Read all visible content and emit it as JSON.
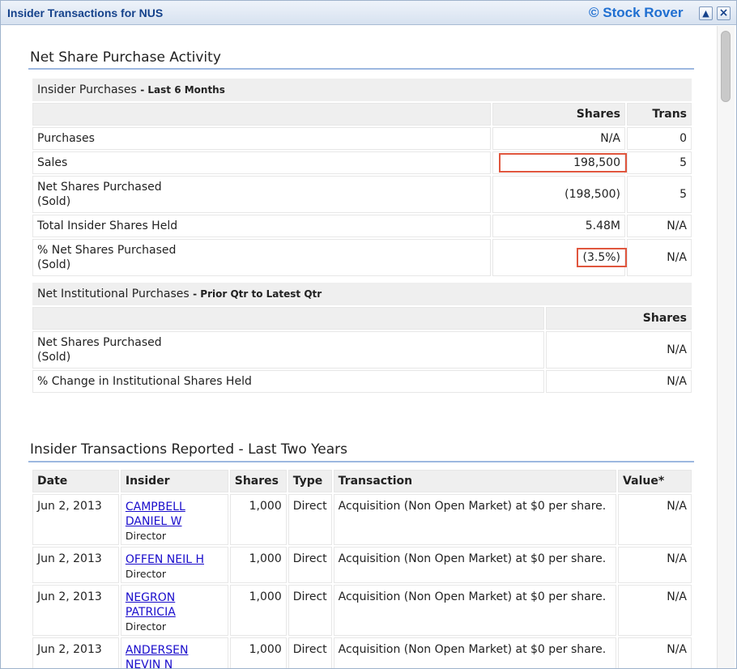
{
  "window": {
    "title": "Insider Transactions for NUS",
    "brand": "© Stock Rover"
  },
  "net_share": {
    "section_title": "Net Share Purchase Activity",
    "insider": {
      "header_label": "Insider Purchases",
      "header_sub": "Last 6 Months",
      "col_shares": "Shares",
      "col_trans": "Trans",
      "rows": [
        {
          "label": "Purchases",
          "shares": "N/A",
          "trans": "0"
        },
        {
          "label": "Sales",
          "shares": "198,500",
          "trans": "5"
        },
        {
          "label": "Net Shares Purchased\n(Sold)",
          "shares": "(198,500)",
          "trans": "5"
        },
        {
          "label": "Total Insider Shares Held",
          "shares": "5.48M",
          "trans": "N/A"
        },
        {
          "label": "% Net Shares Purchased\n(Sold)",
          "shares": "(3.5%)",
          "trans": "N/A"
        }
      ]
    },
    "institutional": {
      "header_label": "Net Institutional Purchases",
      "header_sub": "Prior Qtr to Latest Qtr",
      "col_shares": "Shares",
      "rows": [
        {
          "label": "Net Shares Purchased\n(Sold)",
          "shares": "N/A"
        },
        {
          "label": "% Change in Institutional Shares Held",
          "shares": "N/A"
        }
      ]
    }
  },
  "transactions": {
    "section_title": "Insider Transactions Reported - Last Two Years",
    "columns": [
      "Date",
      "Insider",
      "Shares",
      "Type",
      "Transaction",
      "Value*"
    ],
    "rows": [
      {
        "date": "Jun 2, 2013",
        "insider": "CAMPBELL\nDANIEL W",
        "role": "Director",
        "shares": "1,000",
        "type": "Direct",
        "transaction": "Acquisition (Non Open Market) at $0 per share.",
        "value": "N/A"
      },
      {
        "date": "Jun 2, 2013",
        "insider": "OFFEN NEIL H",
        "role": "Director",
        "shares": "1,000",
        "type": "Direct",
        "transaction": "Acquisition (Non Open Market) at $0 per share.",
        "value": "N/A"
      },
      {
        "date": "Jun 2, 2013",
        "insider": "NEGRON\nPATRICIA",
        "role": "Director",
        "shares": "1,000",
        "type": "Direct",
        "transaction": "Acquisition (Non Open Market) at $0 per share.",
        "value": "N/A"
      },
      {
        "date": "Jun 2, 2013",
        "insider": "ANDERSEN\nNEVIN N",
        "role": "",
        "shares": "1,000",
        "type": "Direct",
        "transaction": "Acquisition (Non Open Market) at $0 per share.",
        "value": "N/A"
      }
    ]
  },
  "colors": {
    "title": "#15428b",
    "brand": "#1f6fd1",
    "highlight": "#e0563e",
    "link": "#1a0dcc"
  }
}
